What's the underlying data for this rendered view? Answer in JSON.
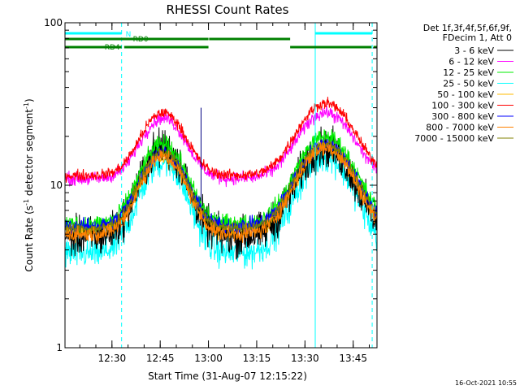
{
  "chart_data": {
    "type": "line",
    "title": "RHESSI Count Rates",
    "xlabel": "Start Time (31-Aug-07 12:15:22)",
    "ylabel_main": "Count Rate (s",
    "ylabel_sup": "-1",
    "ylabel_tail": " detector segment",
    "ylabel_sup2": "-1",
    "ylabel_close": ")",
    "yscale": "log",
    "ylim": [
      1,
      100
    ],
    "y_ticks": [
      {
        "value": 1,
        "label": "1"
      },
      {
        "value": 10,
        "label": "10"
      },
      {
        "value": 100,
        "label": "100"
      }
    ],
    "x_range_minutes": [
      0,
      90
    ],
    "x_ticks": [
      {
        "minute": 14.6,
        "label": "12:30"
      },
      {
        "minute": 29.6,
        "label": "12:45"
      },
      {
        "minute": 44.6,
        "label": "13:00"
      },
      {
        "minute": 59.6,
        "label": "13:15"
      },
      {
        "minute": 74.6,
        "label": "13:30"
      },
      {
        "minute": 89.6,
        "label": "13:45"
      }
    ],
    "timestamp": "16-Oct-2021 10:55",
    "legend_header": [
      "Det 1f,3f,4f,5f,6f,9f,",
      "FDecim 1, Att 0"
    ],
    "series": [
      {
        "name": "3 - 6 keV",
        "color": "#000000",
        "base": 4.8,
        "peak1": 17,
        "peak2": 17,
        "noise": 0.18
      },
      {
        "name": "6 - 12 keV",
        "color": "#ff00ff",
        "base": 11.0,
        "peak1": 26,
        "peak2": 28,
        "noise": 0.06
      },
      {
        "name": "12 - 25 keV",
        "color": "#00ee00",
        "base": 5.8,
        "peak1": 18,
        "peak2": 20,
        "noise": 0.08
      },
      {
        "name": "25 - 50 keV",
        "color": "#00ffff",
        "base": 3.8,
        "peak1": 14,
        "peak2": 15,
        "noise": 0.14
      },
      {
        "name": "50 - 100 keV",
        "color": "#ffbb00",
        "base": 5.2,
        "peak1": 15,
        "peak2": 17,
        "noise": 0.08
      },
      {
        "name": "100 - 300 keV",
        "color": "#ff0000",
        "base": 11.5,
        "peak1": 28,
        "peak2": 32,
        "noise": 0.05
      },
      {
        "name": "300 - 800 keV",
        "color": "#0000ff",
        "base": 5.6,
        "peak1": 16,
        "peak2": 18,
        "noise": 0.07
      },
      {
        "name": "800 - 7000 keV",
        "color": "#ff8000",
        "base": 5.0,
        "peak1": 15,
        "peak2": 17,
        "noise": 0.07
      },
      {
        "name": "7000 - 15000 keV",
        "color": "#808000",
        "base": 5.4,
        "peak1": 16,
        "peak2": 18,
        "noise": 0.05
      }
    ],
    "peaks_minutes": [
      30.5,
      81.0
    ],
    "spike_minute": 42.3,
    "event_lines_minutes": [
      17.6,
      77.8,
      95.5
    ],
    "bands": [
      {
        "label": "N",
        "color": "#00ffff",
        "segments": [
          [
            0,
            17.6
          ],
          [
            77.8,
            95.5
          ]
        ]
      },
      {
        "label": "RD0",
        "color": "#008000",
        "segments": [
          [
            0,
            44.6
          ],
          [
            44.8,
            70.0
          ]
        ]
      },
      {
        "label": "RD4",
        "color": "#008000",
        "segments": [
          [
            0,
            17.6
          ],
          [
            18.4,
            44.6
          ],
          [
            70.0,
            95.3
          ],
          [
            95.9,
            97
          ]
        ]
      }
    ]
  }
}
